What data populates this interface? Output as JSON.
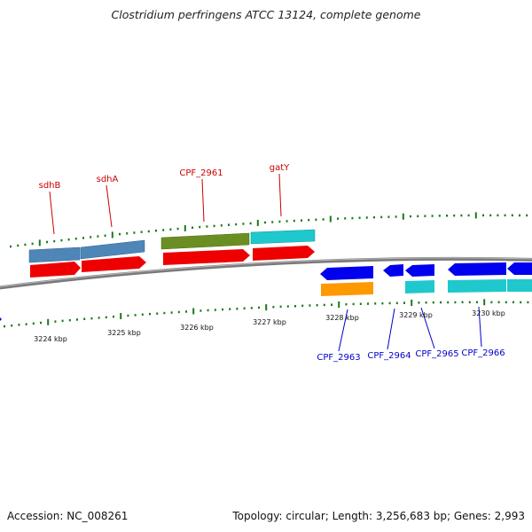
{
  "title": "Clostridium perfringens ATCC 13124, complete genome",
  "footer": {
    "accession": "Accession: NC_008261",
    "stats": "Topology: circular; Length: 3,256,683 bp; Genes: 2,993"
  },
  "axis_labels": [
    "3224 kbp",
    "3225 kbp",
    "3226 kbp",
    "3227 kbp",
    "3228 kbp",
    "3229 kbp",
    "3230 kbp"
  ],
  "gene_labels": {
    "forward": [
      "sdhB",
      "sdhA",
      "CPF_2961",
      "gatY"
    ],
    "reverse": [
      "CPF_2963",
      "CPF_2964",
      "CPF_2965",
      "CPF_2966"
    ]
  },
  "colors": {
    "forward_label": "#cc0000",
    "reverse_label": "#0000cc",
    "tick": "#1a7a1a",
    "backbone": "#7a7a7a",
    "cds_red": "#ee0000",
    "cds_blue": "#0000ee",
    "steelblue": "#4f86b8",
    "olive": "#6b8e23",
    "cyan": "#1fc8cc",
    "orange": "#ff9900"
  }
}
